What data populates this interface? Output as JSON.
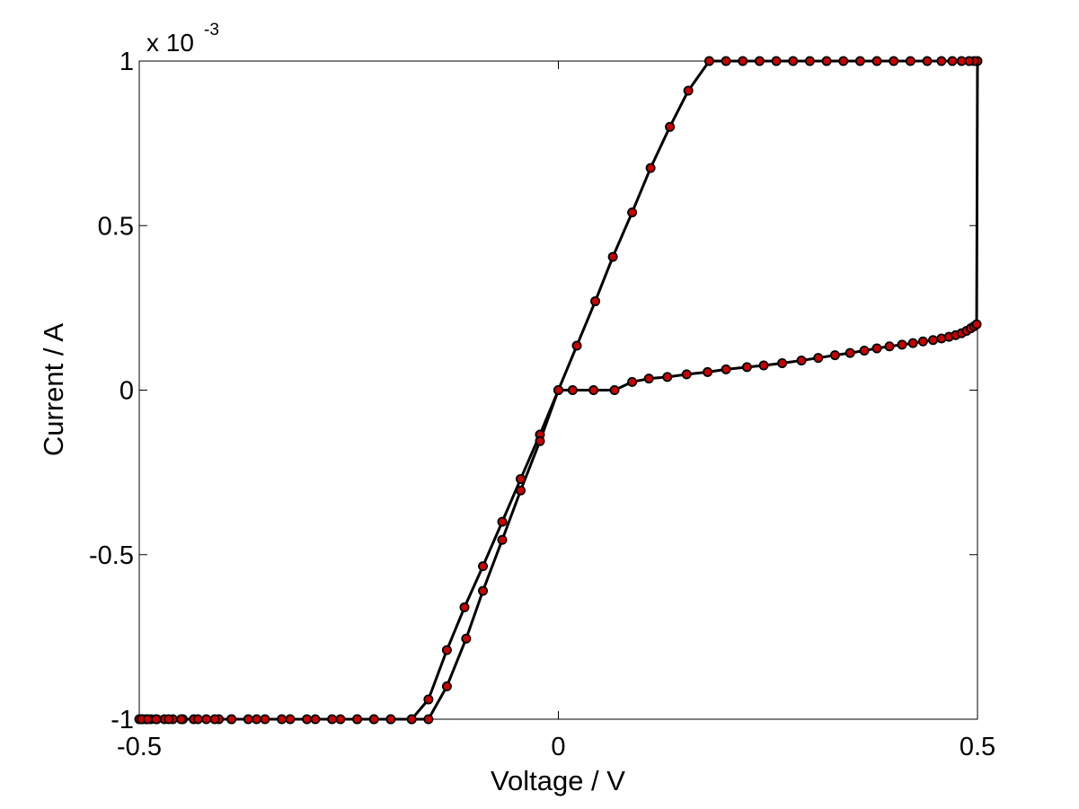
{
  "chart_data": {
    "type": "line",
    "title": "",
    "xlabel": "Voltage / V",
    "ylabel": "Current / A",
    "y_exponent_label": "x 10",
    "y_exponent_power": "-3",
    "xlim": [
      -0.5,
      0.5
    ],
    "ylim": [
      -1,
      1
    ],
    "xticks": [
      -0.5,
      0,
      0.5
    ],
    "xtick_labels": [
      "-0.5",
      "0",
      "0.5"
    ],
    "yticks": [
      -1,
      -0.5,
      0,
      0.5,
      1
    ],
    "ytick_labels": [
      "-1",
      "-0.5",
      "0",
      "0.5",
      "1"
    ],
    "grid": false,
    "legend": "none",
    "line_color": "#000000",
    "marker_edge_color": "#000000",
    "marker_face_color": "#cc0000",
    "series": [
      {
        "values": [
          [
            0,
            0
          ],
          [
            0.017,
            0
          ],
          [
            0.042,
            0
          ],
          [
            0.067,
            0
          ],
          [
            0.088,
            0.025
          ],
          [
            0.108,
            0.035
          ],
          [
            0.13,
            0.04
          ],
          [
            0.153,
            0.048
          ],
          [
            0.178,
            0.055
          ],
          [
            0.2,
            0.063
          ],
          [
            0.225,
            0.07
          ],
          [
            0.245,
            0.075
          ],
          [
            0.267,
            0.082
          ],
          [
            0.29,
            0.09
          ],
          [
            0.31,
            0.098
          ],
          [
            0.33,
            0.106
          ],
          [
            0.348,
            0.113
          ],
          [
            0.365,
            0.12
          ],
          [
            0.38,
            0.127
          ],
          [
            0.395,
            0.133
          ],
          [
            0.41,
            0.138
          ],
          [
            0.423,
            0.143
          ],
          [
            0.435,
            0.148
          ],
          [
            0.447,
            0.152
          ],
          [
            0.457,
            0.157
          ],
          [
            0.466,
            0.162
          ],
          [
            0.474,
            0.167
          ],
          [
            0.481,
            0.173
          ],
          [
            0.487,
            0.18
          ],
          [
            0.492,
            0.188
          ],
          [
            0.496,
            0.194
          ],
          [
            0.499,
            0.2
          ],
          [
            0.5,
            1
          ],
          [
            0.496,
            1
          ],
          [
            0.49,
            1
          ],
          [
            0.481,
            1
          ],
          [
            0.47,
            1
          ],
          [
            0.457,
            1
          ],
          [
            0.44,
            1
          ],
          [
            0.42,
            1
          ],
          [
            0.4,
            1
          ],
          [
            0.38,
            1
          ],
          [
            0.36,
            1
          ],
          [
            0.34,
            1
          ],
          [
            0.32,
            1
          ],
          [
            0.3,
            1
          ],
          [
            0.28,
            1
          ],
          [
            0.26,
            1
          ],
          [
            0.24,
            1
          ],
          [
            0.22,
            1
          ],
          [
            0.2,
            1
          ],
          [
            0.18,
            1
          ],
          [
            0.155,
            0.91
          ],
          [
            0.133,
            0.8
          ],
          [
            0.11,
            0.675
          ],
          [
            0.088,
            0.54
          ],
          [
            0.065,
            0.405
          ],
          [
            0.044,
            0.27
          ],
          [
            0.022,
            0.135
          ],
          [
            0,
            0
          ],
          [
            -0.022,
            -0.135
          ],
          [
            -0.045,
            -0.27
          ],
          [
            -0.067,
            -0.4
          ],
          [
            -0.09,
            -0.535
          ],
          [
            -0.112,
            -0.66
          ],
          [
            -0.133,
            -0.79
          ],
          [
            -0.155,
            -0.94
          ],
          [
            -0.175,
            -1
          ],
          [
            -0.2,
            -1
          ],
          [
            -0.22,
            -1
          ],
          [
            -0.24,
            -1
          ],
          [
            -0.26,
            -1
          ],
          [
            -0.29,
            -1
          ],
          [
            -0.32,
            -1
          ],
          [
            -0.35,
            -1
          ],
          [
            -0.37,
            -1
          ],
          [
            -0.39,
            -1
          ],
          [
            -0.405,
            -1
          ],
          [
            -0.42,
            -1
          ],
          [
            -0.435,
            -1
          ],
          [
            -0.448,
            -1
          ],
          [
            -0.46,
            -1
          ],
          [
            -0.47,
            -1
          ],
          [
            -0.479,
            -1
          ],
          [
            -0.486,
            -1
          ],
          [
            -0.492,
            -1
          ],
          [
            -0.496,
            -1
          ],
          [
            -0.499,
            -1
          ],
          [
            -0.5,
            -1
          ],
          [
            -0.497,
            -1
          ],
          [
            -0.49,
            -1
          ],
          [
            -0.48,
            -1
          ],
          [
            -0.465,
            -1
          ],
          [
            -0.45,
            -1
          ],
          [
            -0.43,
            -1
          ],
          [
            -0.41,
            -1
          ],
          [
            -0.39,
            -1
          ],
          [
            -0.36,
            -1
          ],
          [
            -0.33,
            -1
          ],
          [
            -0.3,
            -1
          ],
          [
            -0.27,
            -1
          ],
          [
            -0.24,
            -1
          ],
          [
            -0.22,
            -1
          ],
          [
            -0.2,
            -1
          ],
          [
            -0.175,
            -1
          ],
          [
            -0.155,
            -1
          ],
          [
            -0.133,
            -0.9
          ],
          [
            -0.11,
            -0.755
          ],
          [
            -0.09,
            -0.61
          ],
          [
            -0.067,
            -0.455
          ],
          [
            -0.045,
            -0.305
          ],
          [
            -0.022,
            -0.155
          ],
          [
            0,
            0
          ]
        ]
      }
    ]
  }
}
